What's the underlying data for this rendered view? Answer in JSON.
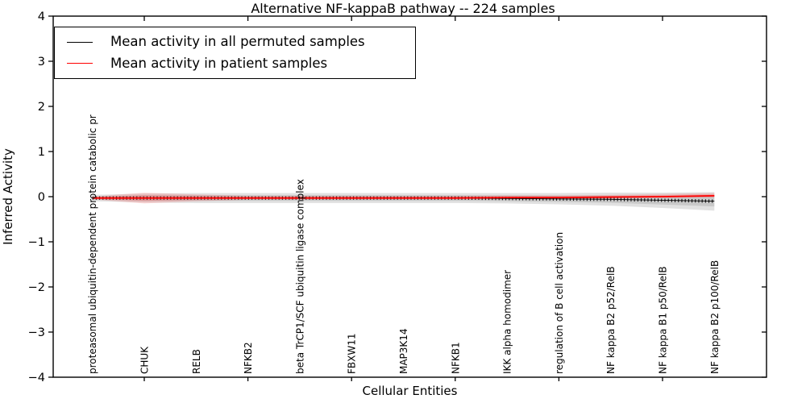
{
  "figure": {
    "title": "Alternative NF-kappaB pathway -- 224 samples",
    "xlabel": "Cellular Entities",
    "ylabel": "Inferred Activity"
  },
  "legend": {
    "items": [
      {
        "label": "Mean activity in all permuted samples",
        "color": "#000000"
      },
      {
        "label": "Mean activity in patient samples",
        "color": "#ff0000"
      }
    ],
    "position": "upper left"
  },
  "chart_data": {
    "type": "line",
    "title": "Alternative NF-kappaB pathway -- 224 samples",
    "xlabel": "Cellular Entities",
    "ylabel": "Inferred Activity",
    "ylim": [
      -4,
      4
    ],
    "ytick_values": [
      4,
      3,
      2,
      1,
      0,
      -1,
      -2,
      -3,
      -4
    ],
    "ytick_labels": [
      "4",
      "3",
      "2",
      "1",
      "0",
      "−1",
      "−2",
      "−3",
      "−4"
    ],
    "grid": false,
    "legend_position": "upper left",
    "xtick_indices": [
      1,
      3,
      5,
      7,
      9,
      11
    ],
    "categories": [
      "proteasomal ubiquitin-dependent protein catabolic pr",
      "CHUK",
      "RELB",
      "NFKB2",
      "beta TrCP1/SCF ubiquitin ligase complex",
      "FBXW11",
      "MAP3K14",
      "NFKB1",
      "IKK alpha homodimer",
      "regulation of B cell activation",
      "NF kappa B2 p52/RelB",
      "NF kappa B1 p50/RelB",
      "NF kappa B2 p100/RelB"
    ],
    "series": [
      {
        "name": "Mean activity in all permuted samples",
        "color": "#000000",
        "values": [
          -0.03,
          -0.03,
          -0.03,
          -0.03,
          -0.03,
          -0.03,
          -0.03,
          -0.03,
          -0.04,
          -0.05,
          -0.06,
          -0.08,
          -0.1
        ],
        "band_upper": [
          0.04,
          0.07,
          0.08,
          0.08,
          0.08,
          0.08,
          0.08,
          0.08,
          0.08,
          0.08,
          0.09,
          0.09,
          0.1
        ],
        "band_lower": [
          -0.1,
          -0.13,
          -0.14,
          -0.14,
          -0.14,
          -0.14,
          -0.14,
          -0.14,
          -0.15,
          -0.17,
          -0.2,
          -0.25,
          -0.31
        ],
        "band_color": "rgba(120,120,120,0.22)"
      },
      {
        "name": "Mean activity in patient samples",
        "color": "#ff0000",
        "values": [
          -0.03,
          -0.03,
          -0.03,
          -0.03,
          -0.03,
          -0.03,
          -0.03,
          -0.03,
          -0.02,
          -0.02,
          -0.01,
          0.0,
          0.02
        ],
        "band_upper": [
          0.0,
          0.09,
          0.05,
          0.02,
          0.02,
          0.02,
          0.02,
          0.02,
          0.03,
          0.03,
          0.04,
          0.06,
          0.08
        ],
        "band_lower": [
          -0.06,
          -0.15,
          -0.1,
          -0.07,
          -0.07,
          -0.07,
          -0.07,
          -0.07,
          -0.06,
          -0.06,
          -0.05,
          -0.03,
          -0.02
        ],
        "band_color": "rgba(255,0,0,0.14)"
      }
    ]
  }
}
